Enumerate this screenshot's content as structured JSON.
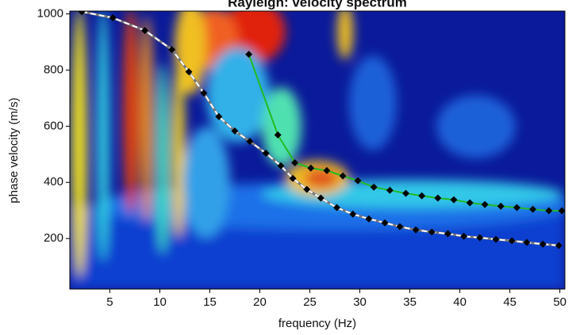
{
  "chart_data": {
    "type": "spectrum",
    "title": "Rayleigh: velocity spectrum",
    "x_label": "frequency (Hz)",
    "y_label": "phase velocity (m/s)",
    "xlim": [
      1,
      50.5
    ],
    "ylim": [
      20,
      1010
    ],
    "xticks": [
      5,
      10,
      15,
      20,
      25,
      30,
      35,
      40,
      45,
      50
    ],
    "yticks": [
      200,
      400,
      600,
      800,
      1000
    ],
    "series": [
      {
        "color": "#ffffff",
        "x": [
          2.2,
          5.3,
          8.5,
          11.2,
          12.9,
          14.4,
          15.9,
          17.5,
          19.0,
          20.6,
          22.1,
          23.3,
          24.7,
          26.1,
          27.7,
          29.3,
          30.9,
          32.5,
          34.0,
          35.6,
          37.2,
          38.8,
          40.4,
          42.0,
          43.6,
          45.2,
          46.7,
          48.3,
          49.9
        ],
        "values": [
          1008,
          986,
          941,
          873,
          794,
          718,
          634,
          583,
          546,
          504,
          459,
          414,
          375,
          344,
          310,
          287,
          270,
          256,
          242,
          231,
          223,
          217,
          208,
          203,
          197,
          192,
          186,
          180,
          175
        ]
      },
      {
        "color": "#22bb22",
        "x": [
          18.9,
          21.8,
          23.5,
          25.1,
          26.7,
          28.3,
          29.8,
          31.4,
          33.0,
          34.6,
          36.2,
          37.8,
          39.4,
          41.0,
          42.5,
          44.1,
          45.7,
          47.3,
          48.9,
          50.2
        ],
        "values": [
          856,
          569,
          470,
          451,
          442,
          423,
          406,
          383,
          372,
          361,
          352,
          344,
          338,
          327,
          321,
          315,
          310,
          304,
          299,
          299
        ]
      }
    ]
  }
}
